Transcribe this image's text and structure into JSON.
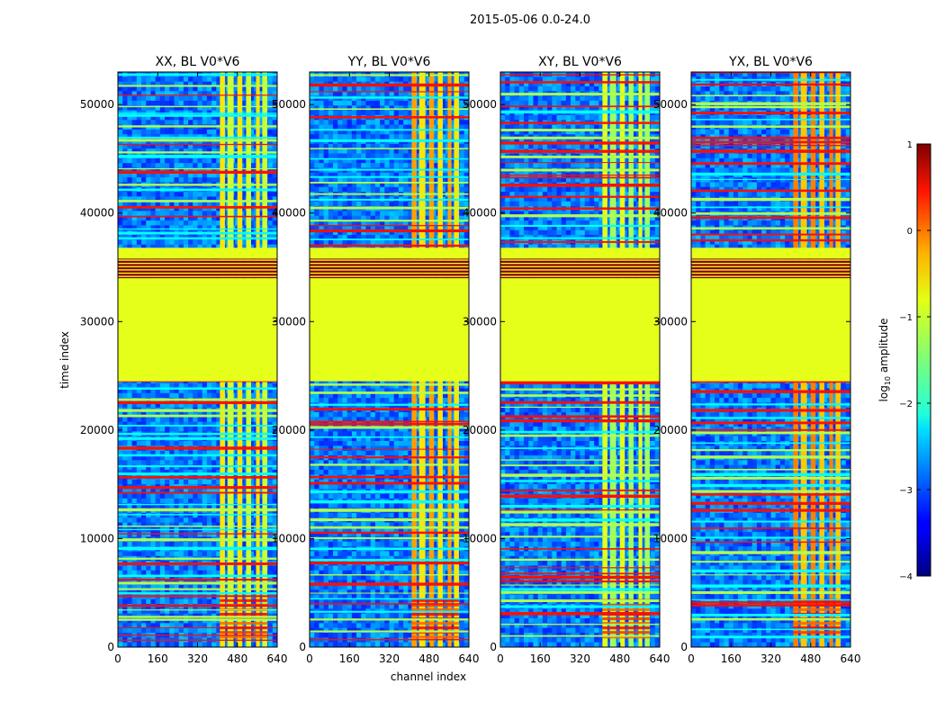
{
  "chart_data": {
    "type": "heatmap",
    "suptitle": "2015-05-06 0.0-24.0",
    "xlabel": "channel index",
    "ylabel": "time index",
    "xlim": [
      0,
      640
    ],
    "ylim": [
      0,
      53000
    ],
    "x_ticks": [
      0,
      160,
      320,
      480,
      640
    ],
    "y_ticks": [
      0,
      10000,
      20000,
      30000,
      40000,
      50000
    ],
    "panels": [
      {
        "title": "XX, BL V0*V6",
        "hot_band_level": 0.35
      },
      {
        "title": "YY, BL V0*V6",
        "hot_band_level": 0.42
      },
      {
        "title": "XY, BL V0*V6",
        "hot_band_level": 0.3
      },
      {
        "title": "YX, BL V0*V6",
        "hot_band_level": 0.45
      }
    ],
    "flag_ranges": [
      {
        "start": 24500,
        "end": 34000,
        "log10_value": -1.0
      },
      {
        "start": 34000,
        "end": 35800,
        "log10_value": 1.0
      },
      {
        "start": 35800,
        "end": 36800,
        "log10_value": -1.0
      }
    ],
    "active_channel_ranges": [
      [
        410,
        430
      ],
      [
        440,
        465
      ],
      [
        480,
        500
      ],
      [
        515,
        535
      ],
      [
        555,
        570
      ],
      [
        580,
        600
      ]
    ],
    "colorbar": {
      "label": "log",
      "label_sub": "10",
      "label_suffix": " amplitude",
      "min": -4,
      "max": 1,
      "ticks": [
        1,
        0,
        -1,
        -2,
        -3,
        -4
      ],
      "tick_labels": [
        "1",
        "0",
        "−1",
        "−2",
        "−3",
        "−4"
      ],
      "colormap": "jet"
    }
  }
}
